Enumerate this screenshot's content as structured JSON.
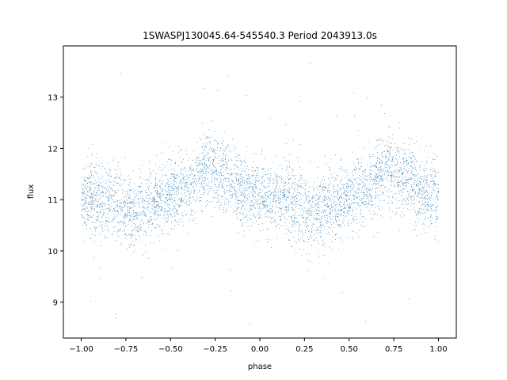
{
  "chart_data": {
    "type": "scatter",
    "title": "1SWASPJ130045.64-545540.3 Period 2043913.0s",
    "xlabel": "phase",
    "ylabel": "flux",
    "xlim": [
      -1.1,
      1.1
    ],
    "ylim": [
      8.3,
      14.0
    ],
    "x_ticks": [
      -1.0,
      -0.75,
      -0.5,
      -0.25,
      0.0,
      0.25,
      0.5,
      0.75,
      1.0
    ],
    "x_tick_labels": [
      "−1.00",
      "−0.75",
      "−0.50",
      "−0.25",
      "0.00",
      "0.25",
      "0.50",
      "0.75",
      "1.00"
    ],
    "y_ticks": [
      9,
      10,
      11,
      12,
      13
    ],
    "y_tick_labels": [
      "9",
      "10",
      "11",
      "12",
      "13"
    ],
    "grid": false,
    "marker_color": "#1f77b4",
    "phase_range": [
      -1.0,
      1.0
    ],
    "profile": {
      "phase": [
        0.0,
        0.05,
        0.1,
        0.15,
        0.2,
        0.25,
        0.3,
        0.35,
        0.4,
        0.45,
        0.5,
        0.55,
        0.6,
        0.65,
        0.7,
        0.75,
        0.8,
        0.85,
        0.9,
        0.95,
        1.0
      ],
      "flux": [
        11.1,
        11.05,
        11.0,
        11.0,
        10.9,
        10.8,
        10.75,
        10.85,
        10.95,
        11.0,
        11.1,
        11.15,
        11.2,
        11.4,
        11.6,
        11.55,
        11.45,
        11.3,
        11.15,
        11.1,
        11.1
      ]
    },
    "scatter_sigma": 0.35
  }
}
